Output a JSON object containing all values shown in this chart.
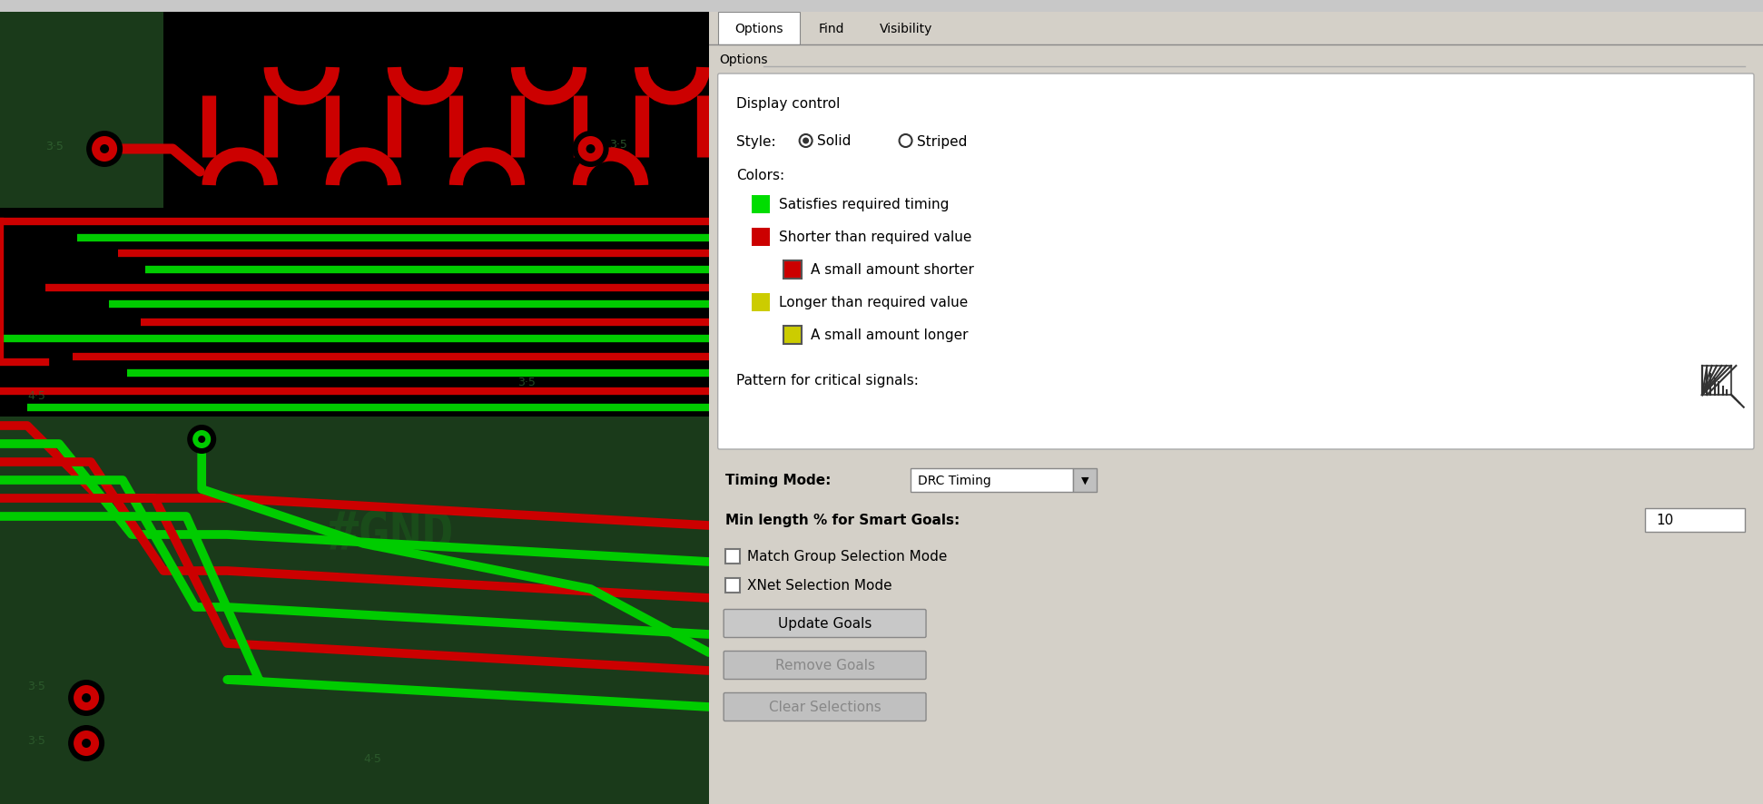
{
  "fig_width": 19.42,
  "fig_height": 8.87,
  "dpi": 100,
  "pcb_bg": "#1a3a1a",
  "pcb_black": "#000000",
  "red_trace": "#cc0000",
  "green_trace": "#00cc00",
  "panel_bg": "#d4d0c8",
  "panel_split": 0.402,
  "tab_labels": [
    "Options",
    "Find",
    "Visibility"
  ],
  "display_control_label": "Display control",
  "style_label": "Style:",
  "solid_label": "Solid",
  "striped_label": "Striped",
  "colors_label": "Colors:",
  "color_entries": [
    {
      "color": "#00dd00",
      "text": "Satisfies required timing",
      "indent": false,
      "border": false
    },
    {
      "color": "#cc0000",
      "text": "Shorter than required value",
      "indent": false,
      "border": false
    },
    {
      "color": "#cc0000",
      "text": "A small amount shorter",
      "indent": true,
      "border": true
    },
    {
      "color": "#cccc00",
      "text": "Longer than required value",
      "indent": false,
      "border": false
    },
    {
      "color": "#cccc00",
      "text": "A small amount longer",
      "indent": true,
      "border": true
    }
  ],
  "pattern_label": "Pattern for critical signals:",
  "timing_mode_label": "Timing Mode:",
  "timing_mode_value": "DRC Timing",
  "min_length_label": "Min length % for Smart Goals:",
  "min_length_value": "10",
  "match_group_label": "Match Group Selection Mode",
  "xnet_label": "XNet Selection Mode",
  "button_update": "Update Goals",
  "button_remove": "Remove Goals",
  "button_clear": "Clear Selections"
}
